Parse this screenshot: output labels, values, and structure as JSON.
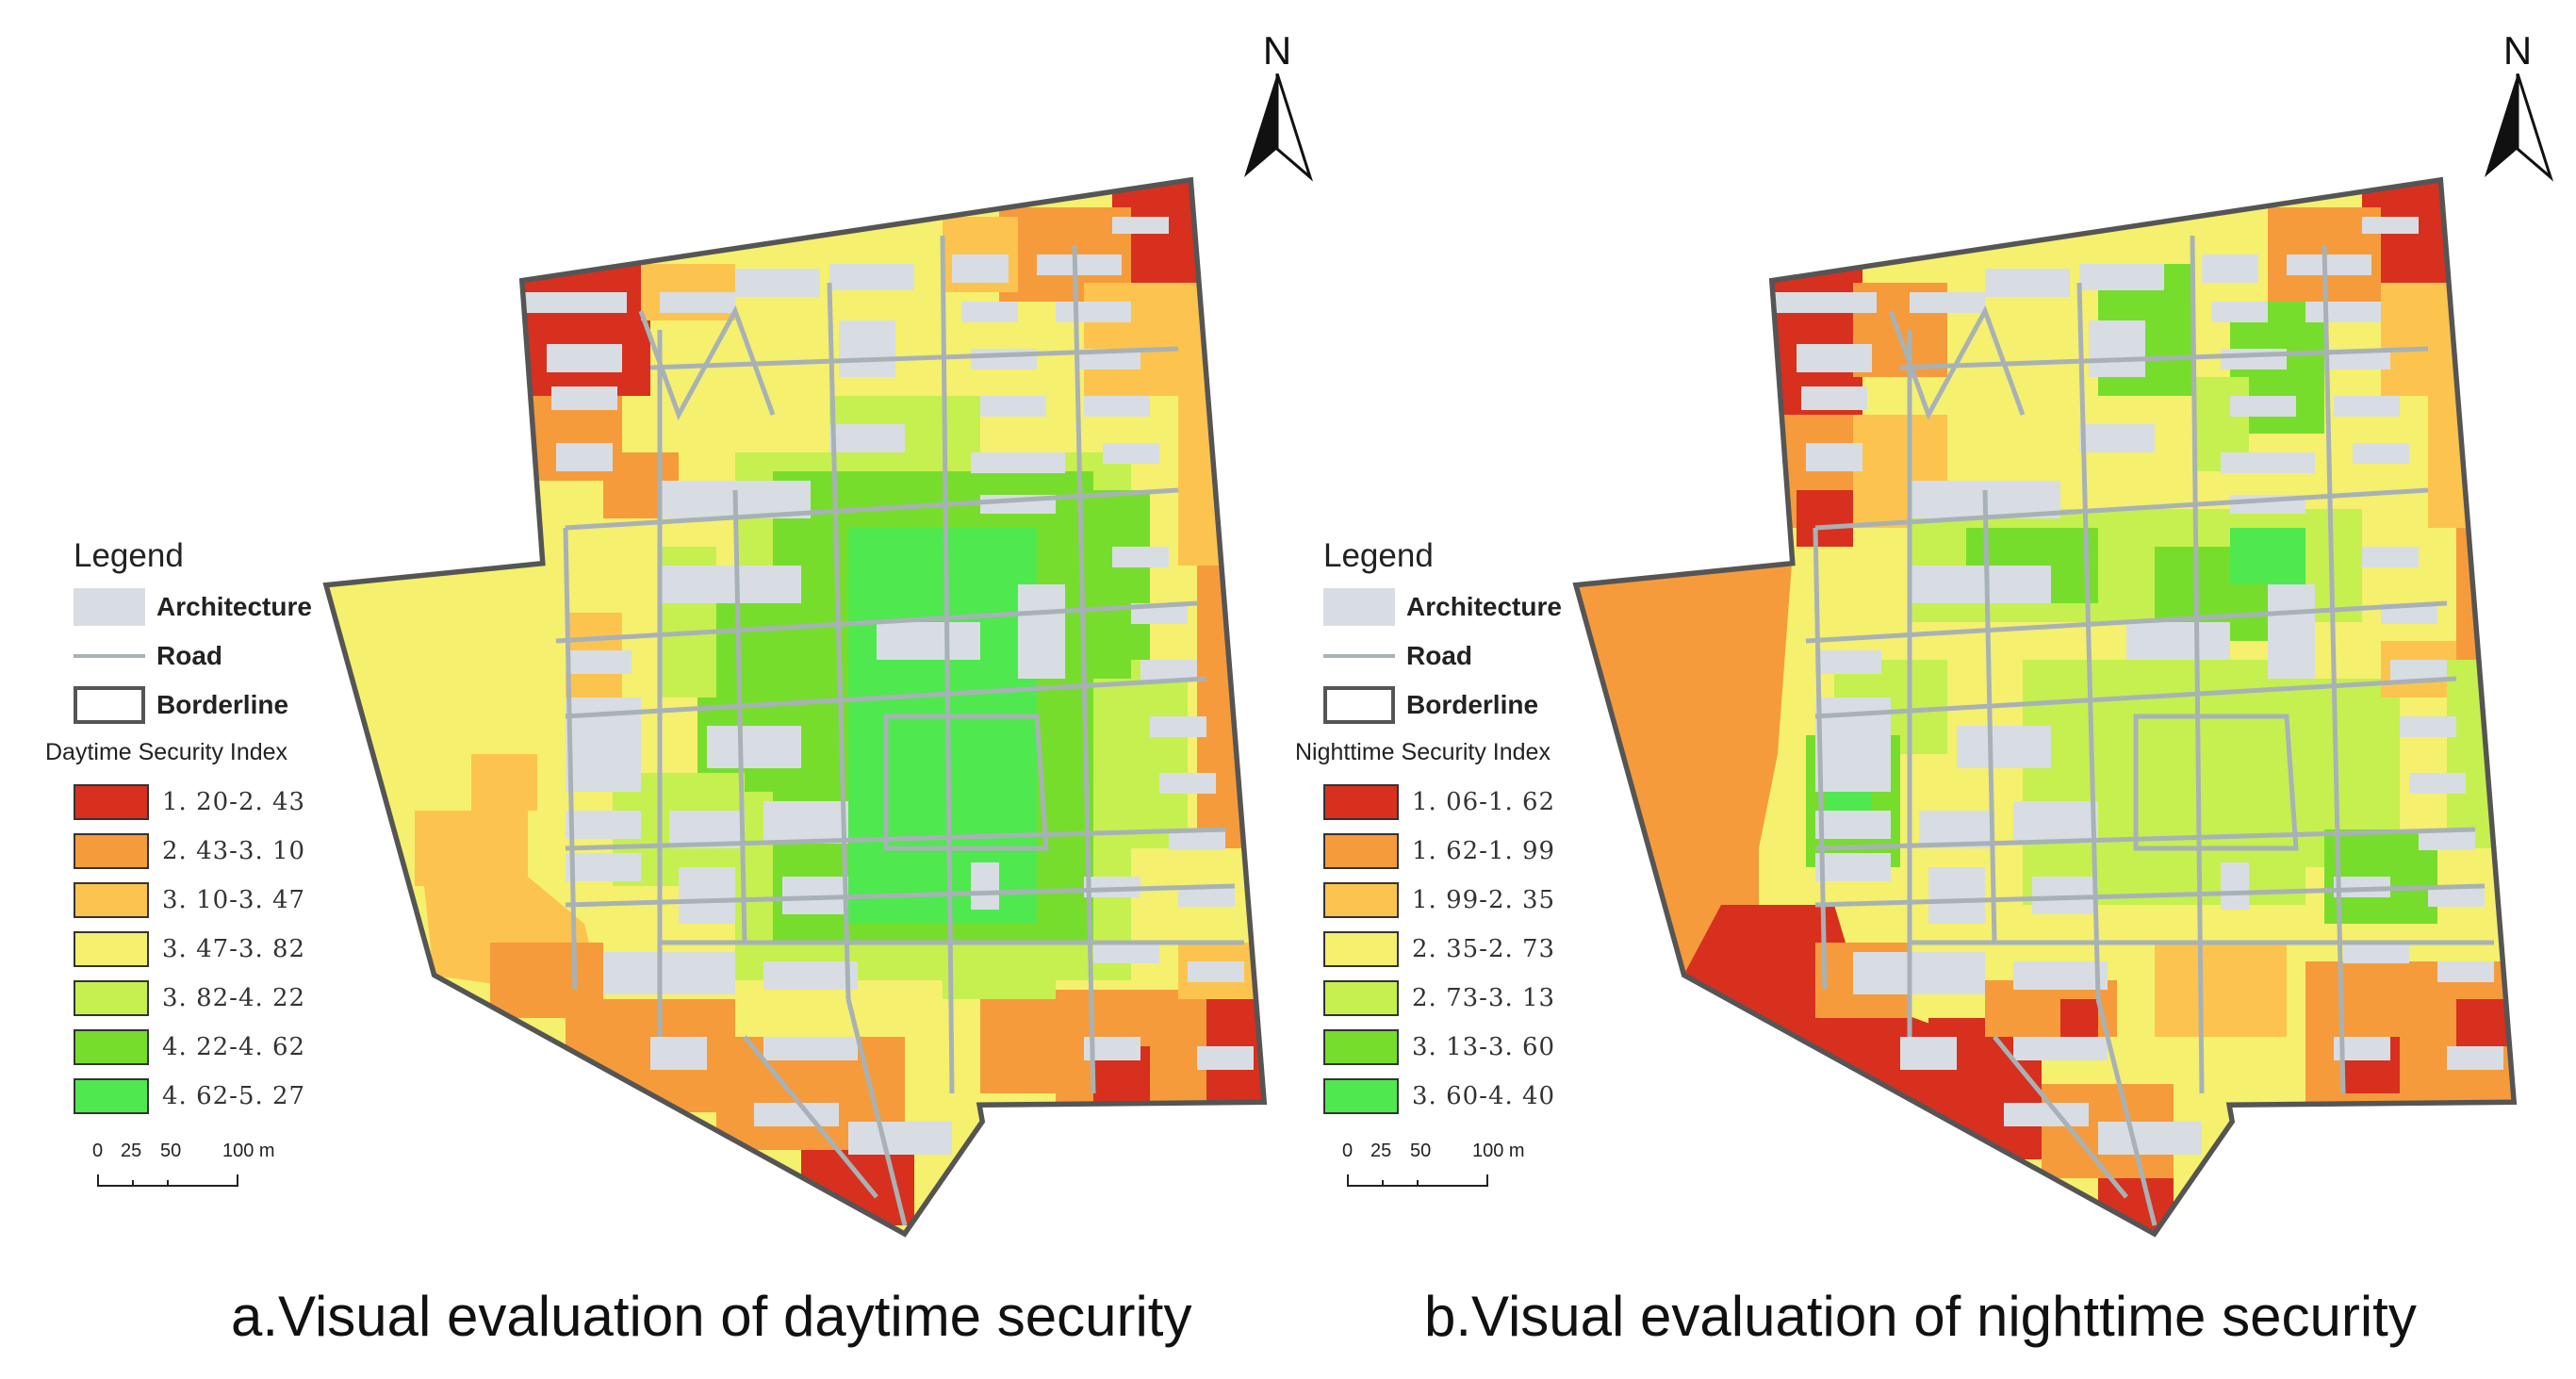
{
  "legend": {
    "title": "Legend",
    "architecture_label": "Architecture",
    "road_label": "Road",
    "borderline_label": "Borderline"
  },
  "colors": {
    "architecture": "#d8dde3",
    "road": "#a8b2b6",
    "borderline": "#555555",
    "class_1": "#d7301f",
    "class_2": "#f59b3c",
    "class_3": "#fcc44e",
    "class_4": "#f5f06e",
    "class_5": "#c5f04f",
    "class_6": "#77dd2d",
    "class_7": "#4fe84f"
  },
  "maps": {
    "daytime": {
      "index_title": "Daytime Security Index",
      "caption": "a.Visual evaluation of daytime security",
      "classes": [
        {
          "label": "1. 20-2. 43",
          "color": "#d7301f"
        },
        {
          "label": "2. 43-3. 10",
          "color": "#f59b3c"
        },
        {
          "label": "3. 10-3. 47",
          "color": "#fcc44e"
        },
        {
          "label": "3. 47-3. 82",
          "color": "#f5f06e"
        },
        {
          "label": "3. 82-4. 22",
          "color": "#c5f04f"
        },
        {
          "label": "4. 22-4. 62",
          "color": "#77dd2d"
        },
        {
          "label": "4. 62-5. 27",
          "color": "#4fe84f"
        }
      ]
    },
    "nighttime": {
      "index_title": "Nighttime Security Index",
      "caption": "b.Visual evaluation of nighttime security",
      "classes": [
        {
          "label": "1. 06-1. 62",
          "color": "#d7301f"
        },
        {
          "label": "1. 62-1. 99",
          "color": "#f59b3c"
        },
        {
          "label": "1. 99-2. 35",
          "color": "#fcc44e"
        },
        {
          "label": "2. 35-2. 73",
          "color": "#f5f06e"
        },
        {
          "label": "2. 73-3. 13",
          "color": "#c5f04f"
        },
        {
          "label": "3. 13-3. 60",
          "color": "#77dd2d"
        },
        {
          "label": "3. 60-4. 40",
          "color": "#4fe84f"
        }
      ]
    }
  },
  "scalebar": {
    "ticks": [
      "0",
      "25",
      "50",
      "100 m"
    ]
  },
  "north": {
    "label": "N"
  }
}
